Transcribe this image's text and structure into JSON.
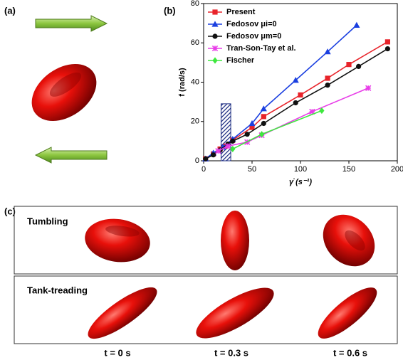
{
  "panel_labels": [
    "(a)",
    "(b)",
    "(c)"
  ],
  "chart_data": {
    "type": "line",
    "xlabel": "γ̇ (s⁻¹)",
    "ylabel": "f (rad/s)",
    "xlim": [
      0,
      200
    ],
    "xticks": [
      0,
      50,
      100,
      150,
      200
    ],
    "ylim": [
      0,
      80
    ],
    "yticks": [
      0,
      20,
      40,
      60,
      80
    ],
    "shaded_region": {
      "x": [
        18,
        28
      ],
      "y": [
        0,
        29
      ]
    },
    "series": [
      {
        "name": "Present",
        "color": "#e8232a",
        "marker": "square",
        "x": [
          2,
          10,
          17,
          23,
          30,
          50,
          62,
          100,
          128,
          150,
          190
        ],
        "values": [
          1,
          3.5,
          6,
          7.5,
          10.5,
          17,
          22.5,
          33.5,
          42,
          49,
          60.5
        ]
      },
      {
        "name": "Fedosov μi=0",
        "color": "#1a3fe0",
        "marker": "triangle",
        "x": [
          2,
          10,
          20,
          30,
          50,
          62,
          95,
          128,
          158
        ],
        "values": [
          1,
          4,
          7,
          11,
          19,
          26.5,
          41,
          55.5,
          69
        ]
      },
      {
        "name": "Fedosov μm=0",
        "color": "#111111",
        "marker": "circle",
        "x": [
          2,
          10,
          17,
          25,
          30,
          45,
          62,
          95,
          128,
          160,
          190
        ],
        "values": [
          1,
          3,
          5.5,
          8.5,
          10,
          13.5,
          19,
          29.5,
          38.5,
          48,
          57
        ]
      },
      {
        "name": "Tran-Son-Tay et al.",
        "color": "#e83ee8",
        "marker": "star",
        "x": [
          15,
          25,
          45,
          60,
          112,
          170
        ],
        "values": [
          5,
          7.5,
          9.5,
          13,
          25,
          37
        ]
      },
      {
        "name": "Fischer",
        "color": "#3ee83e",
        "marker": "diamond",
        "x": [
          30,
          60,
          122
        ],
        "values": [
          6,
          13.5,
          25.5
        ]
      }
    ]
  },
  "rows": [
    "Tumbling",
    "Tank-treading"
  ],
  "time_labels": [
    "t = 0 s",
    "t = 0.3 s",
    "t = 0.6 s"
  ]
}
